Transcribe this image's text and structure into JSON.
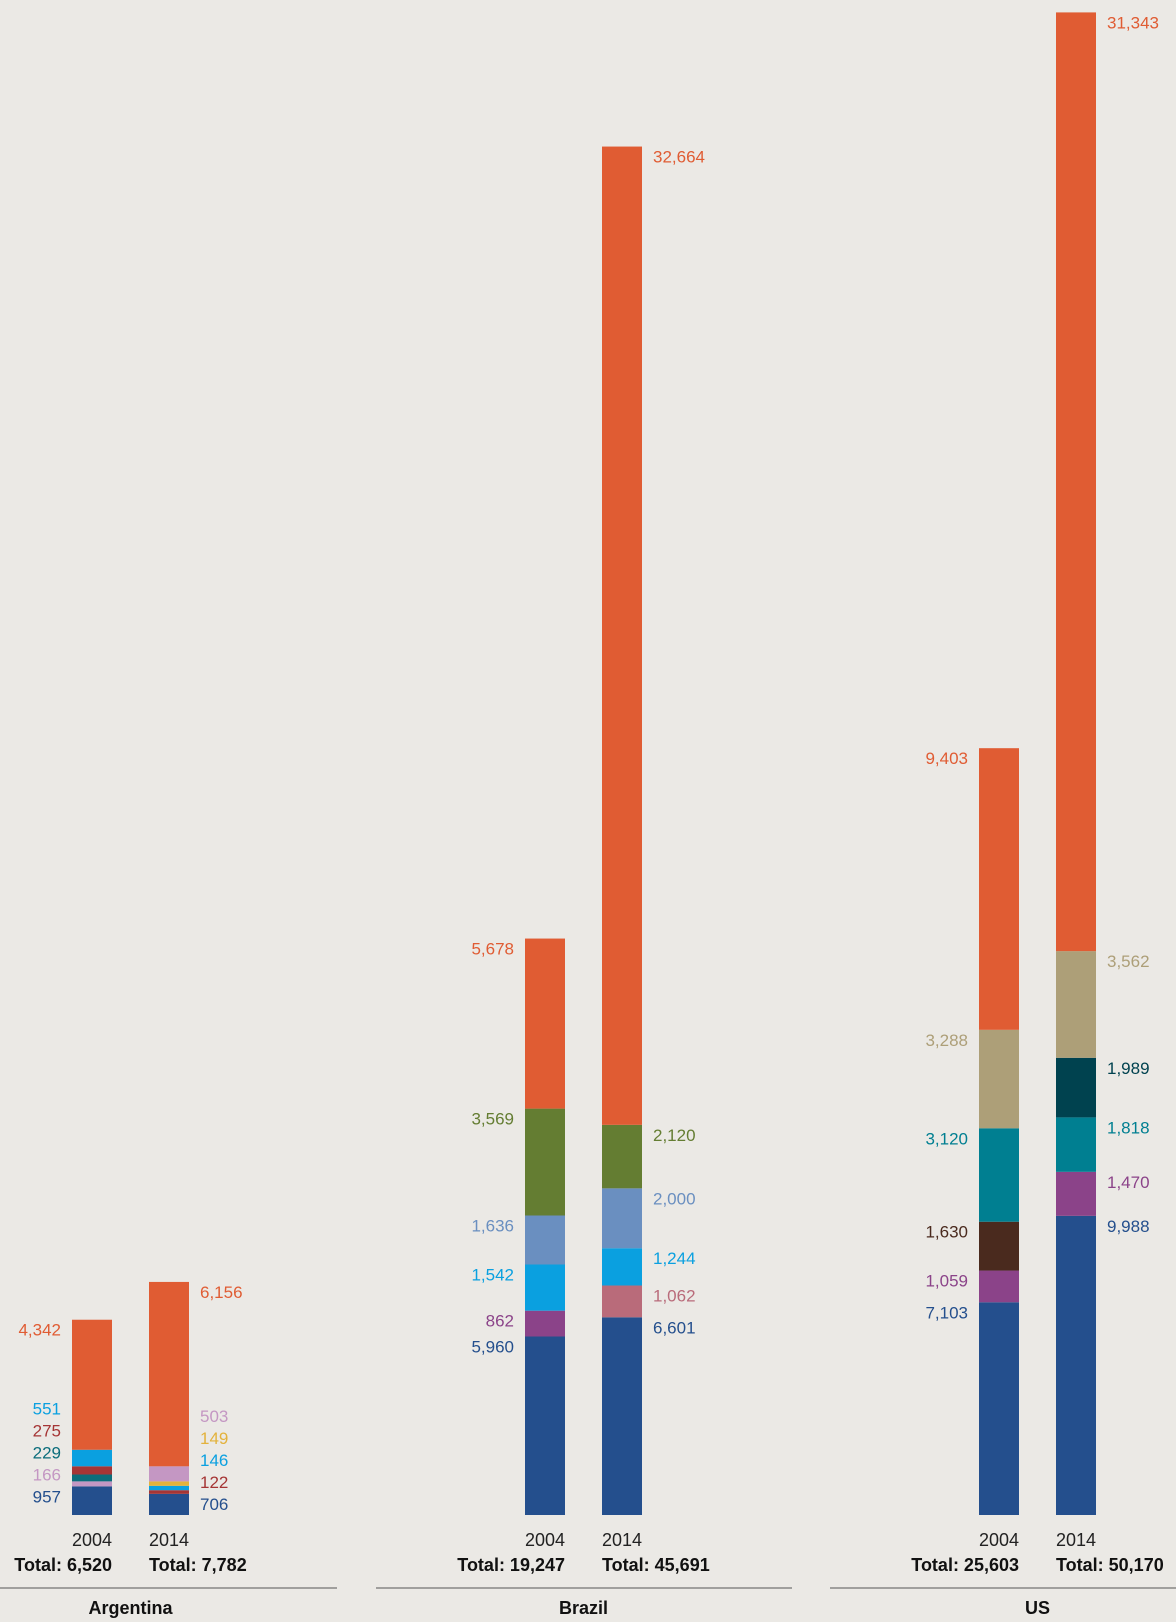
{
  "chart_data": {
    "type": "bar",
    "stacked": true,
    "categories": [
      "2004",
      "2014"
    ],
    "groups": [
      {
        "name": "Argentina",
        "bars": [
          {
            "year": "2004",
            "total_label": "Total: 6,520",
            "segments": [
              {
                "value": 957,
                "label": "957",
                "color": "#244f8d"
              },
              {
                "value": 166,
                "label": "166",
                "color": "#c497c3"
              },
              {
                "value": 229,
                "label": "229",
                "color": "#0b6d7b"
              },
              {
                "value": 275,
                "label": "275",
                "color": "#a53535"
              },
              {
                "value": 551,
                "label": "551",
                "color": "#0aa0e0"
              },
              {
                "value": 4342,
                "label": "4,342",
                "color": "#e05c33"
              }
            ]
          },
          {
            "year": "2014",
            "total_label": "Total: 7,782",
            "segments": [
              {
                "value": 706,
                "label": "706",
                "color": "#244f8d"
              },
              {
                "value": 122,
                "label": "122",
                "color": "#a53535"
              },
              {
                "value": 146,
                "label": "146",
                "color": "#0aa0e0"
              },
              {
                "value": 149,
                "label": "149",
                "color": "#e3b23c"
              },
              {
                "value": 503,
                "label": "503",
                "color": "#c497c3"
              },
              {
                "value": 6156,
                "label": "6,156",
                "color": "#e05c33"
              }
            ]
          }
        ]
      },
      {
        "name": "Brazil",
        "bars": [
          {
            "year": "2004",
            "total_label": "Total: 19,247",
            "segments": [
              {
                "value": 5960,
                "label": "5,960",
                "color": "#244f8d"
              },
              {
                "value": 862,
                "label": "862",
                "color": "#8b4389"
              },
              {
                "value": 1542,
                "label": "1,542",
                "color": "#0aa0e0"
              },
              {
                "value": 1636,
                "label": "1,636",
                "color": "#6a8fc0"
              },
              {
                "value": 3569,
                "label": "3,569",
                "color": "#647d32"
              },
              {
                "value": 5678,
                "label": "5,678",
                "color": "#e05c33"
              }
            ]
          },
          {
            "year": "2014",
            "total_label": "Total: 45,691",
            "segments": [
              {
                "value": 6601,
                "label": "6,601",
                "color": "#244f8d"
              },
              {
                "value": 1062,
                "label": "1,062",
                "color": "#b96b7a"
              },
              {
                "value": 1244,
                "label": "1,244",
                "color": "#0aa0e0"
              },
              {
                "value": 2000,
                "label": "2,000",
                "color": "#6a8fc0"
              },
              {
                "value": 2120,
                "label": "2,120",
                "color": "#647d32"
              },
              {
                "value": 32664,
                "label": "32,664",
                "color": "#e05c33"
              }
            ]
          }
        ]
      },
      {
        "name": "US",
        "bars": [
          {
            "year": "2004",
            "total_label": "Total: 25,603",
            "segments": [
              {
                "value": 7103,
                "label": "7,103",
                "color": "#244f8d"
              },
              {
                "value": 1059,
                "label": "1,059",
                "color": "#8b4389"
              },
              {
                "value": 1630,
                "label": "1,630",
                "color": "#4a2a1e"
              },
              {
                "value": 3120,
                "label": "3,120",
                "color": "#007f91"
              },
              {
                "value": 3288,
                "label": "3,288",
                "color": "#ad9f78"
              },
              {
                "value": 9403,
                "label": "9,403",
                "color": "#e05c33"
              }
            ]
          },
          {
            "year": "2014",
            "total_label": "Total: 50,170",
            "segments": [
              {
                "value": 9988,
                "label": "9,988",
                "color": "#244f8d"
              },
              {
                "value": 1470,
                "label": "1,470",
                "color": "#8b4389"
              },
              {
                "value": 1818,
                "label": "1,818",
                "color": "#007f91"
              },
              {
                "value": 1989,
                "label": "1,989",
                "color": "#00424f"
              },
              {
                "value": 3562,
                "label": "3,562",
                "color": "#ad9f78"
              },
              {
                "value": 31343,
                "label": "31,343",
                "color": "#e05c33"
              }
            ]
          }
        ]
      }
    ]
  }
}
